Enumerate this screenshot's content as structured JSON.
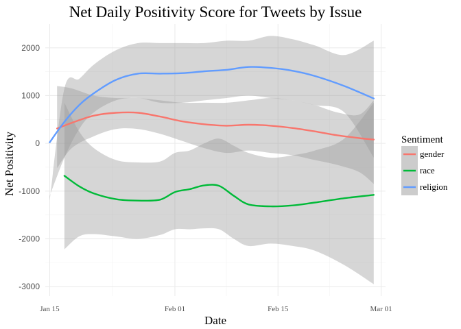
{
  "chart_data": {
    "type": "line",
    "title": "Net Daily Positivity Score for Tweets by Issue",
    "xlabel": "Date",
    "ylabel": "Net Positivity",
    "x_ticks": [
      "Jan 15",
      "Feb 01",
      "Feb 15",
      "Mar 01"
    ],
    "x_tick_days": [
      0,
      17,
      31,
      45
    ],
    "xlim_days": [
      -0.6,
      45.6
    ],
    "y_ticks": [
      2000,
      1000,
      0,
      -1000,
      -2000,
      -3000
    ],
    "y_tick_labels": [
      "2000",
      "1000",
      "0",
      "-1000",
      "-2000",
      "-3000"
    ],
    "ylim": [
      -3200,
      2500
    ],
    "grid": true,
    "legend": {
      "title": "Sentiment",
      "position": "right"
    },
    "series": [
      {
        "name": "gender",
        "color": "#f8766d",
        "x": [
          "Jan 16",
          "Jan 18",
          "Jan 21",
          "Jan 24",
          "Jan 27",
          "Jan 30",
          "Feb 02",
          "Feb 05",
          "Feb 08",
          "Feb 11",
          "Feb 14",
          "Feb 17",
          "Feb 20",
          "Feb 23",
          "Feb 26",
          "Feb 28"
        ],
        "y": [
          310,
          430,
          580,
          640,
          640,
          560,
          460,
          400,
          370,
          390,
          370,
          320,
          250,
          170,
          110,
          80
        ],
        "band_upper": [
          1200,
          1150,
          1000,
          950,
          950,
          900,
          850,
          850,
          850,
          900,
          950,
          900,
          800,
          650,
          600,
          900
        ],
        "band_lower": [
          -520,
          -100,
          150,
          300,
          300,
          200,
          50,
          -100,
          -200,
          -150,
          -200,
          -250,
          -350,
          -450,
          -600,
          -850
        ]
      },
      {
        "name": "race",
        "color": "#00ba38",
        "x": [
          "Jan 17",
          "Jan 19",
          "Jan 21",
          "Jan 24",
          "Jan 27",
          "Jan 30",
          "Feb 01",
          "Feb 03",
          "Feb 05",
          "Feb 07",
          "Feb 09",
          "Feb 11",
          "Feb 14",
          "Feb 17",
          "Feb 20",
          "Feb 24",
          "Feb 28"
        ],
        "y": [
          -680,
          -900,
          -1050,
          -1170,
          -1200,
          -1180,
          -1020,
          -960,
          -880,
          -890,
          -1100,
          -1280,
          -1320,
          -1300,
          -1240,
          -1150,
          -1080
        ],
        "band_upper": [
          850,
          250,
          -100,
          -350,
          -400,
          -380,
          -200,
          -150,
          0,
          100,
          -50,
          -200,
          -300,
          -250,
          -150,
          100,
          850
        ],
        "band_lower": [
          -2220,
          -1950,
          -1900,
          -1950,
          -2000,
          -1920,
          -1800,
          -1800,
          -1780,
          -1800,
          -2000,
          -2150,
          -2100,
          -2150,
          -2250,
          -2550,
          -2950
        ]
      },
      {
        "name": "religion",
        "color": "#619cff",
        "x": [
          "Jan 15",
          "Jan 17",
          "Jan 19",
          "Jan 21",
          "Jan 24",
          "Jan 27",
          "Jan 30",
          "Feb 02",
          "Feb 05",
          "Feb 08",
          "Feb 11",
          "Feb 14",
          "Feb 17",
          "Feb 20",
          "Feb 24",
          "Feb 28"
        ],
        "y": [
          20,
          450,
          800,
          1050,
          1330,
          1460,
          1460,
          1470,
          1510,
          1540,
          1600,
          1580,
          1520,
          1410,
          1200,
          940
        ],
        "band_upper": [
          -1200,
          1150,
          1350,
          1650,
          1950,
          2100,
          2100,
          2100,
          2100,
          2150,
          2150,
          2250,
          2180,
          2050,
          1850,
          2150
        ],
        "band_lower": [
          -1100,
          -300,
          300,
          650,
          900,
          950,
          850,
          850,
          900,
          950,
          1000,
          950,
          900,
          800,
          650,
          -300
        ]
      }
    ]
  }
}
